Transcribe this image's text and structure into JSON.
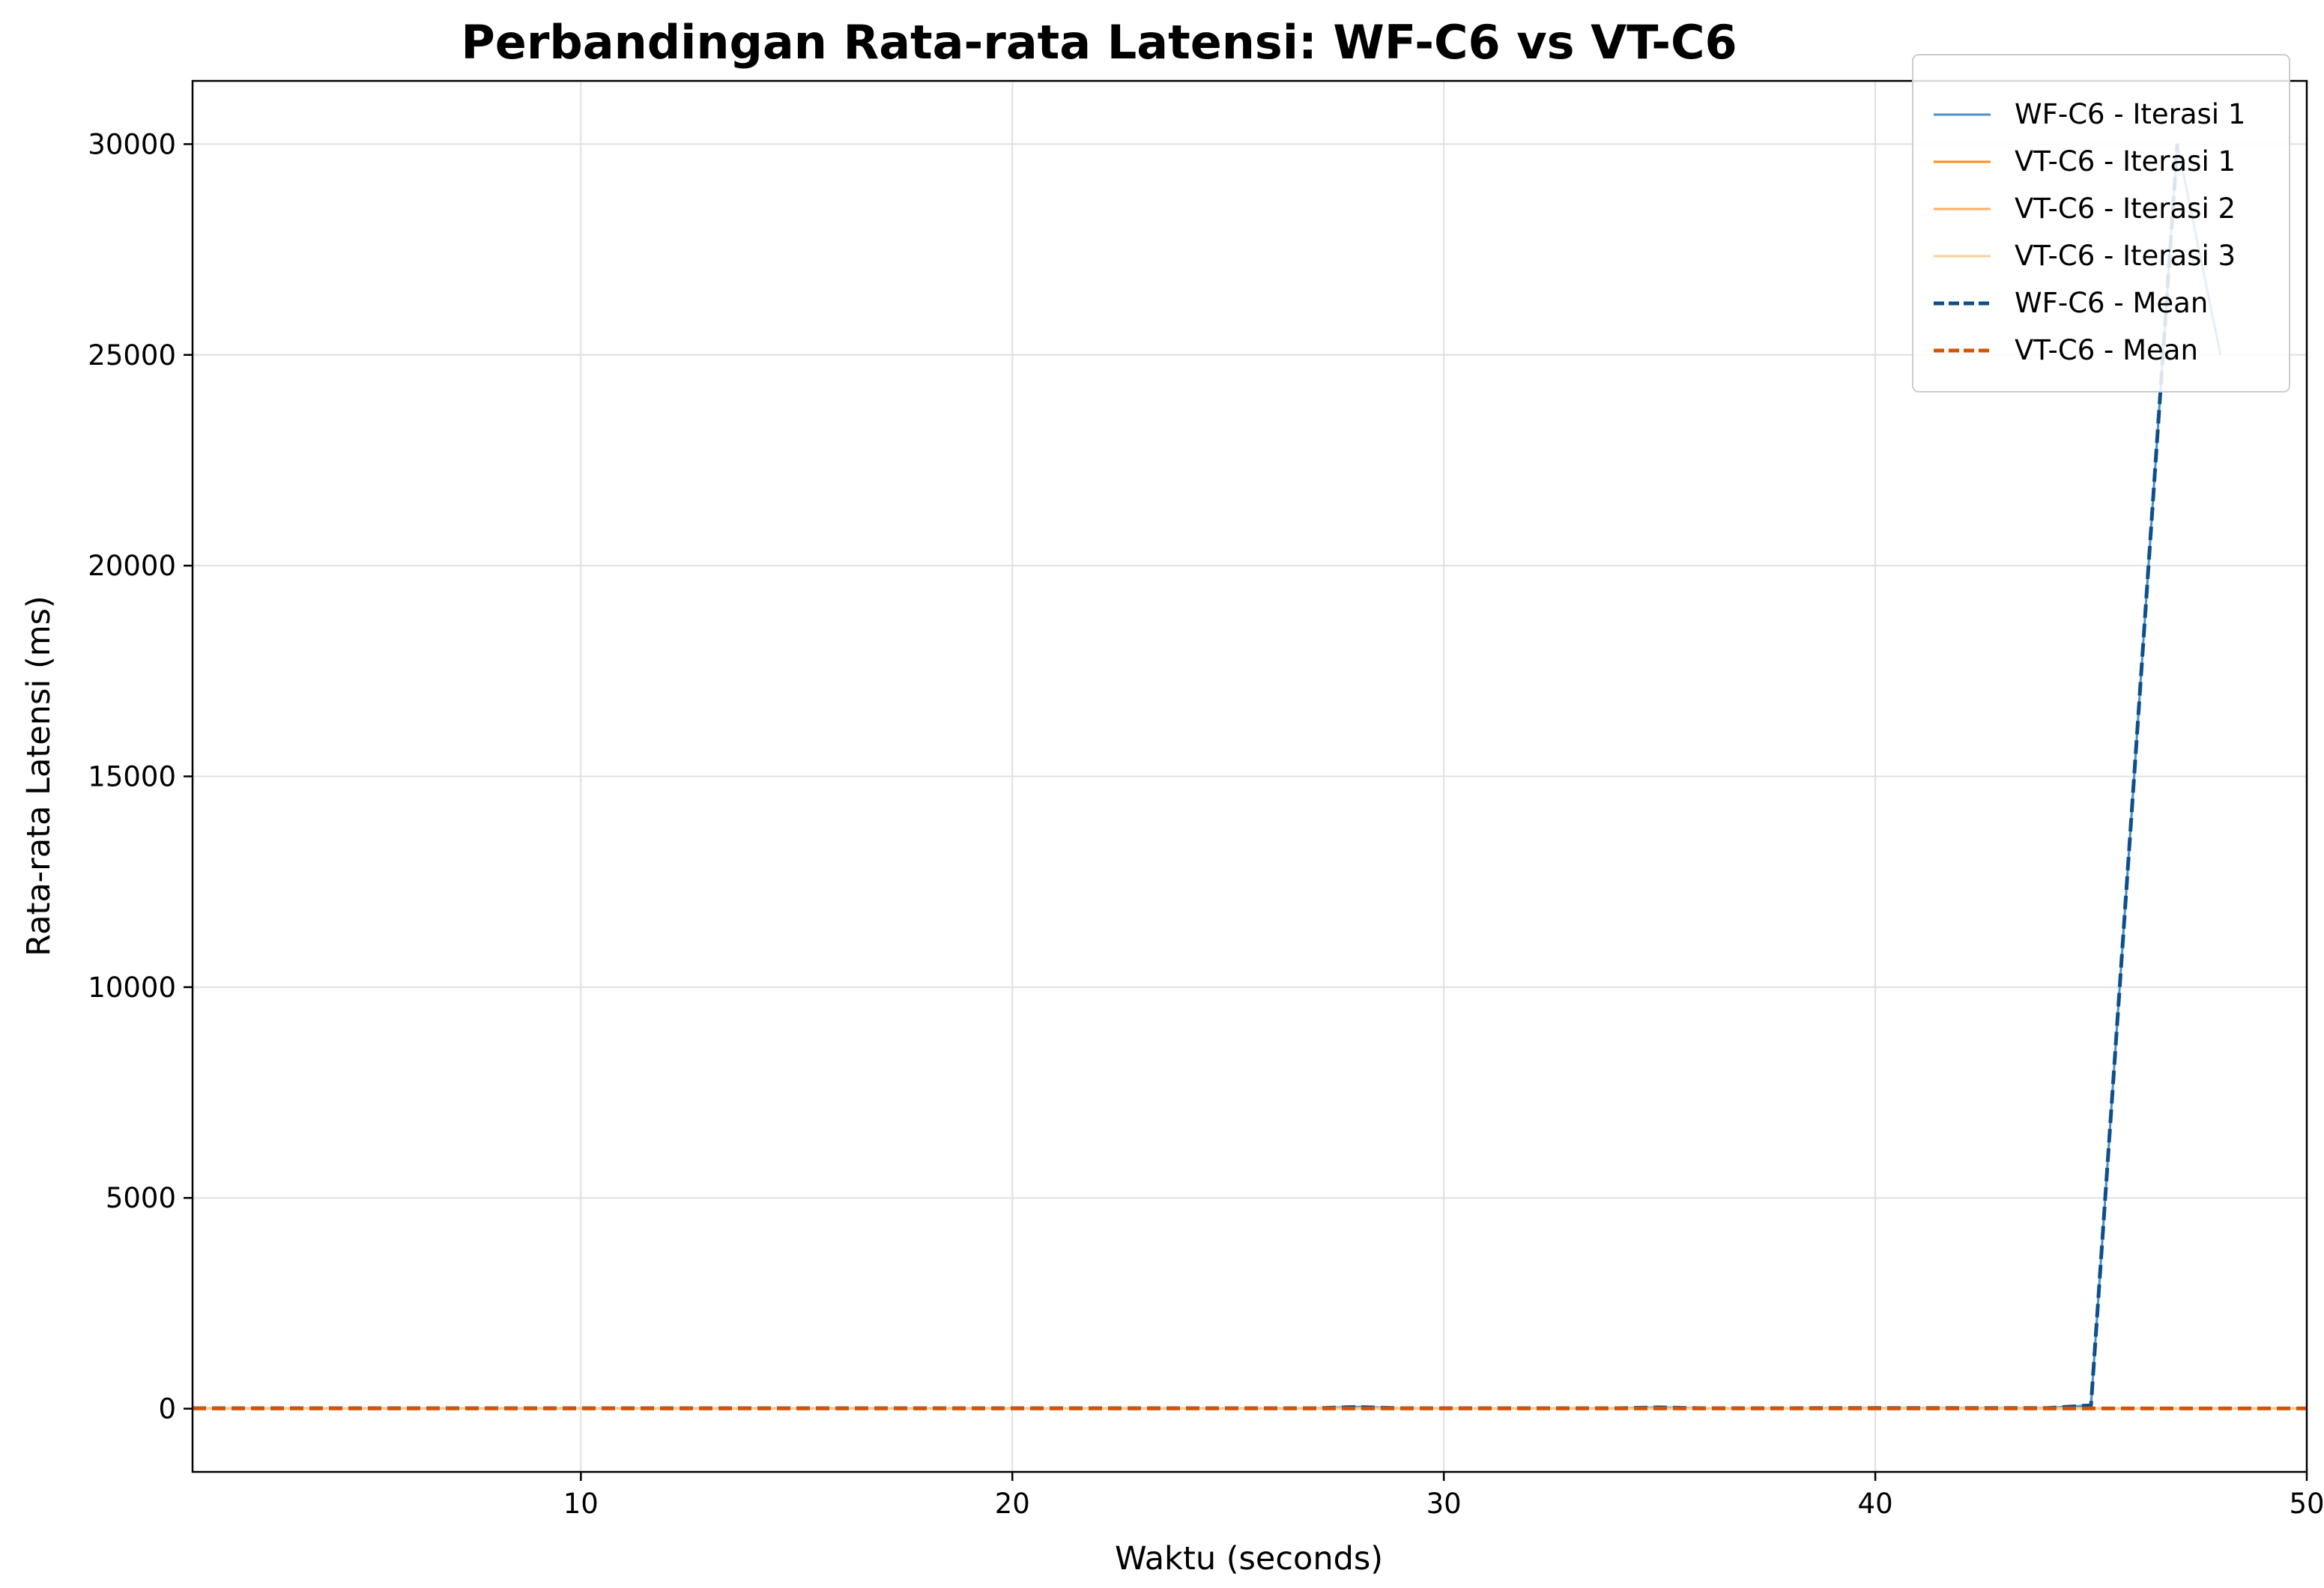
{
  "chart_data": {
    "type": "line",
    "title": "Perbandingan Rata-rata Latensi: WF-C6 vs VT-C6",
    "xlabel": "Waktu (seconds)",
    "ylabel": "Rata-rata Latensi (ms)",
    "xlim": [
      1,
      50
    ],
    "ylim": [
      -1500,
      31500
    ],
    "xticks": [
      10,
      20,
      30,
      40,
      50
    ],
    "yticks": [
      0,
      5000,
      10000,
      15000,
      20000,
      25000,
      30000
    ],
    "grid": true,
    "legend_position": "top-right",
    "series": [
      {
        "name": "WF-C6 - Iterasi 1",
        "color": "#4d8fc4",
        "dash": "solid",
        "width": 3,
        "x": [
          1,
          2,
          3,
          4,
          5,
          6,
          7,
          8,
          9,
          10,
          11,
          12,
          13,
          14,
          15,
          16,
          17,
          18,
          19,
          20,
          21,
          22,
          23,
          24,
          25,
          26,
          27,
          28,
          29,
          30,
          31,
          32,
          33,
          34,
          35,
          36,
          37,
          38,
          39,
          40,
          41,
          42,
          43,
          44,
          45,
          46,
          47,
          48
        ],
        "y": [
          10,
          10,
          10,
          10,
          10,
          10,
          10,
          10,
          10,
          10,
          10,
          10,
          10,
          10,
          10,
          10,
          10,
          10,
          10,
          10,
          10,
          10,
          10,
          10,
          10,
          10,
          10,
          40,
          10,
          10,
          10,
          10,
          10,
          10,
          30,
          10,
          10,
          10,
          15,
          15,
          15,
          15,
          15,
          15,
          80,
          15000,
          30000,
          25000
        ]
      },
      {
        "name": "VT-C6 - Iterasi 1",
        "color": "#ff8c1a",
        "dash": "solid",
        "width": 3,
        "x": [
          1,
          50
        ],
        "y": [
          5,
          5
        ]
      },
      {
        "name": "VT-C6 - Iterasi 2",
        "color": "#ffae66",
        "dash": "solid",
        "width": 3,
        "x": [
          1,
          50
        ],
        "y": [
          5,
          5
        ]
      },
      {
        "name": "VT-C6 - Iterasi 3",
        "color": "#ffcc99",
        "dash": "solid",
        "width": 3,
        "x": [
          1,
          50
        ],
        "y": [
          5,
          5
        ]
      },
      {
        "name": "WF-C6 - Mean",
        "color": "#0d4f8b",
        "dash": "dashed",
        "width": 5,
        "x": [
          1,
          2,
          3,
          4,
          5,
          6,
          7,
          8,
          9,
          10,
          11,
          12,
          13,
          14,
          15,
          16,
          17,
          18,
          19,
          20,
          21,
          22,
          23,
          24,
          25,
          26,
          27,
          28,
          29,
          30,
          31,
          32,
          33,
          34,
          35,
          36,
          37,
          38,
          39,
          40,
          41,
          42,
          43,
          44,
          45,
          46,
          47
        ],
        "y": [
          10,
          10,
          10,
          10,
          10,
          10,
          10,
          10,
          10,
          10,
          10,
          10,
          10,
          10,
          10,
          10,
          10,
          10,
          10,
          10,
          10,
          10,
          10,
          10,
          10,
          10,
          10,
          40,
          10,
          10,
          10,
          10,
          10,
          10,
          30,
          10,
          10,
          10,
          15,
          15,
          15,
          15,
          15,
          15,
          80,
          15000,
          30000
        ]
      },
      {
        "name": "VT-C6 - Mean",
        "color": "#d35400",
        "dash": "dashed",
        "width": 5,
        "x": [
          1,
          50
        ],
        "y": [
          5,
          5
        ]
      }
    ]
  }
}
